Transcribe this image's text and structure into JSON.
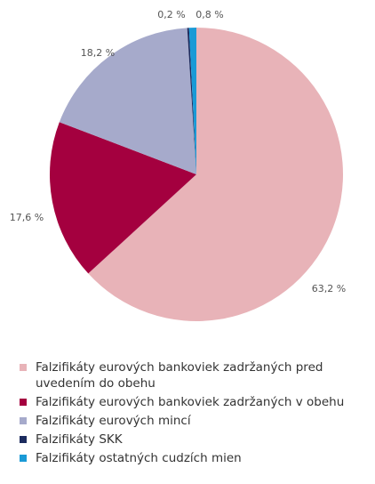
{
  "chart_data": {
    "type": "pie",
    "categories": [
      "Falzifikáty eurových bankoviek zadržaných pred uvedením do obehu",
      "Falzifikáty eurových bankoviek zadržaných v obehu",
      "Falzifikáty eurových mincí",
      "Falzifikáty SKK",
      "Falzifikáty ostatných cudzích mien"
    ],
    "values": [
      63.2,
      17.6,
      18.2,
      0.2,
      0.8
    ],
    "value_labels": [
      "63,2 %",
      "17,6 %",
      "18,2 %",
      "0,2 %",
      "0,8 %"
    ],
    "colors": [
      "#e8b3b8",
      "#a4003f",
      "#a6aacb",
      "#1c2b5e",
      "#1a9ad6"
    ]
  }
}
